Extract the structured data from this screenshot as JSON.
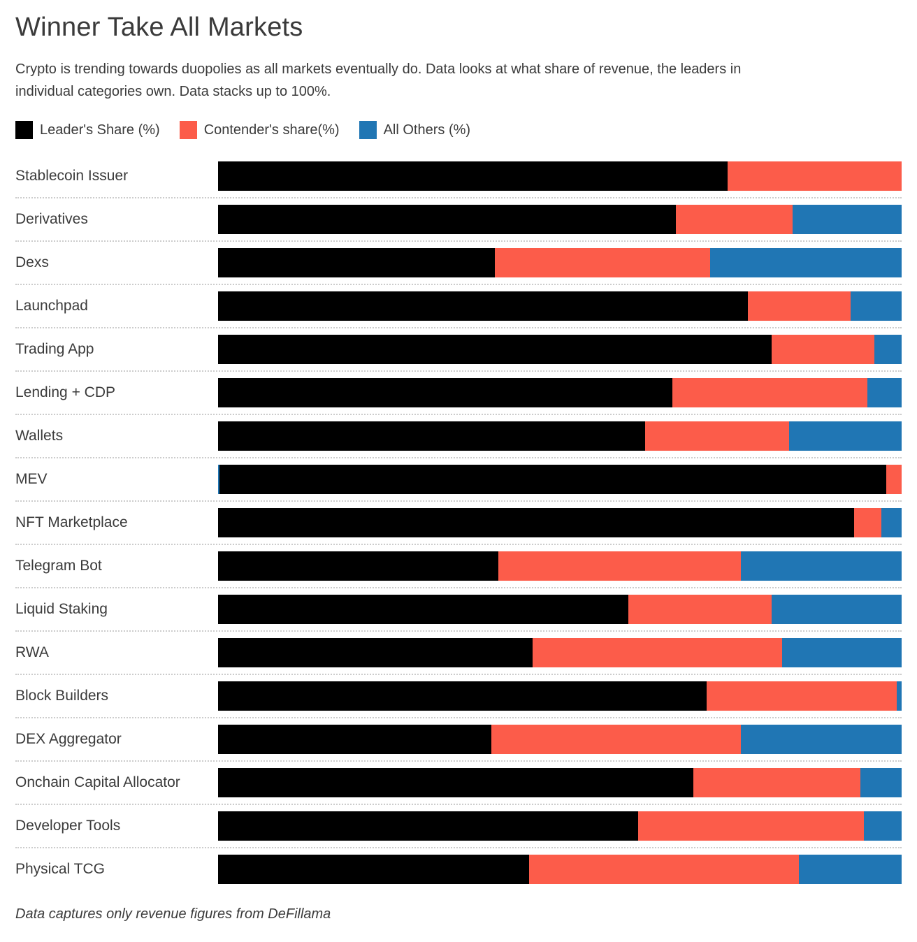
{
  "page": {
    "title": "Winner Take All Markets",
    "subtitle_line1": "Crypto is trending towards duopolies as all markets eventually do. Data looks at what share of revenue, the leaders in",
    "subtitle_line2": "individual categories own. Data stacks up to 100%.",
    "footnote": "Data captures only revenue figures from DeFillama"
  },
  "legend": [
    {
      "key": "leader",
      "label": "Leader's Share (%)"
    },
    {
      "key": "contender",
      "label": "Contender's share(%)"
    },
    {
      "key": "others",
      "label": "All Others (%)"
    }
  ],
  "chart_data": {
    "type": "bar",
    "orientation": "horizontal",
    "stacked": true,
    "unit": "percent",
    "xlim": [
      0,
      100
    ],
    "grid": false,
    "legend_position": "top",
    "series_names": [
      "Leader's Share (%)",
      "Contender's share(%)",
      "All Others (%)"
    ],
    "colors": {
      "leader": "#000000",
      "contender": "#fc5c4a",
      "others": "#2076b4"
    },
    "rows": [
      {
        "label": "Stablecoin Issuer",
        "leader": 74.5,
        "contender": 25.5,
        "others": 0
      },
      {
        "label": "Derivatives",
        "leader": 67,
        "contender": 17,
        "others": 16
      },
      {
        "label": "Dexs",
        "leader": 40.5,
        "contender": 31.5,
        "others": 28
      },
      {
        "label": "Launchpad",
        "leader": 77.5,
        "contender": 15,
        "others": 7.5
      },
      {
        "label": "Trading App",
        "leader": 81,
        "contender": 15,
        "others": 4
      },
      {
        "label": "Lending + CDP",
        "leader": 66.5,
        "contender": 28.5,
        "others": 5
      },
      {
        "label": "Wallets",
        "leader": 62.5,
        "contender": 21,
        "others": 16.5
      },
      {
        "label": "MEV",
        "leader": 97.5,
        "contender": 2.25,
        "others": 0.25,
        "others_first": true
      },
      {
        "label": "NFT Marketplace",
        "leader": 93,
        "contender": 4,
        "others": 3
      },
      {
        "label": "Telegram Bot",
        "leader": 41,
        "contender": 35.5,
        "others": 23.5
      },
      {
        "label": "Liquid Staking",
        "leader": 60,
        "contender": 21,
        "others": 19
      },
      {
        "label": "RWA",
        "leader": 46,
        "contender": 36.5,
        "others": 17.5
      },
      {
        "label": "Block Builders",
        "leader": 71.5,
        "contender": 27.75,
        "others": 0.75
      },
      {
        "label": "DEX Aggregator",
        "leader": 40,
        "contender": 36.5,
        "others": 23.5
      },
      {
        "label": "Onchain Capital Allocator",
        "leader": 69.5,
        "contender": 24.5,
        "others": 6
      },
      {
        "label": "Developer Tools",
        "leader": 61.5,
        "contender": 33,
        "others": 5.5
      },
      {
        "label": "Physical TCG",
        "leader": 45.5,
        "contender": 39.5,
        "others": 15
      }
    ]
  }
}
